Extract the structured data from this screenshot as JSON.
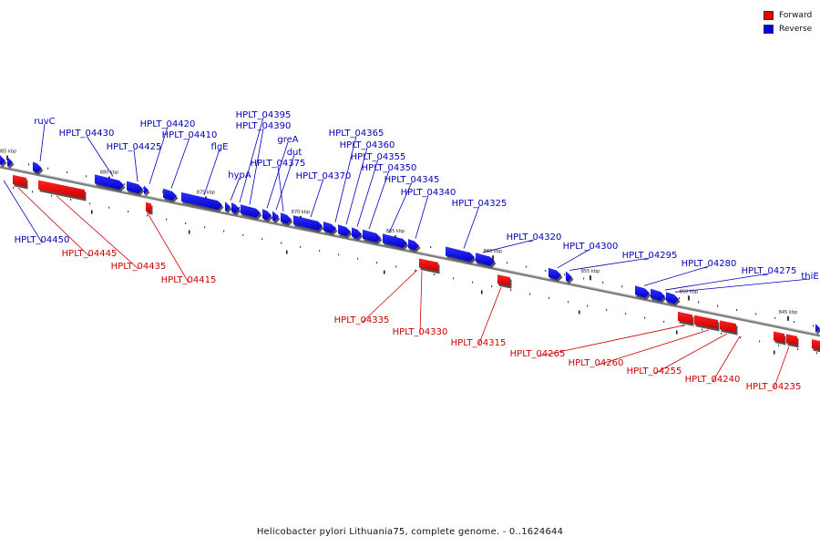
{
  "caption": "Helicobacter pylori Lithuania75, complete genome. - 0..1624644",
  "legend": [
    {
      "label": "Forward",
      "color": "#ee0000"
    },
    {
      "label": "Reverse",
      "color": "#0000ee"
    }
  ],
  "colors": {
    "forward": "#e80000",
    "reverse": "#1010e8",
    "backbone": "#808080",
    "forward_label": "#cc0000",
    "reverse_label": "#0000bb"
  },
  "scale_labels": [
    "885 kbp",
    "880 kbp",
    "875 kbp",
    "870 kbp",
    "865 kbp",
    "860 kbp",
    "855 kbp",
    "850 kbp",
    "845 kbp"
  ],
  "reverse_genes": [
    "ruvC",
    "HPLT_04430",
    "HPLT_04425",
    "HPLT_04420",
    "HPLT_04410",
    "flgE",
    "hypA",
    "HPLT_04395",
    "HPLT_04390",
    "greA",
    "dut",
    "HPLT_04375",
    "HPLT_04370",
    "HPLT_04365",
    "HPLT_04360",
    "HPLT_04355",
    "HPLT_04350",
    "HPLT_04345",
    "HPLT_04340",
    "HPLT_04325",
    "HPLT_04320",
    "HPLT_04300",
    "HPLT_04295",
    "HPLT_04280",
    "HPLT_04275",
    "thiE",
    "HPLT_04450"
  ],
  "forward_genes": [
    "HPLT_04445",
    "HPLT_04435",
    "HPLT_04415",
    "HPLT_04335",
    "HPLT_04330",
    "HPLT_04315",
    "HPLT_04265",
    "HPLT_04260",
    "HPLT_04255",
    "HPLT_04240",
    "HPLT_04235"
  ]
}
